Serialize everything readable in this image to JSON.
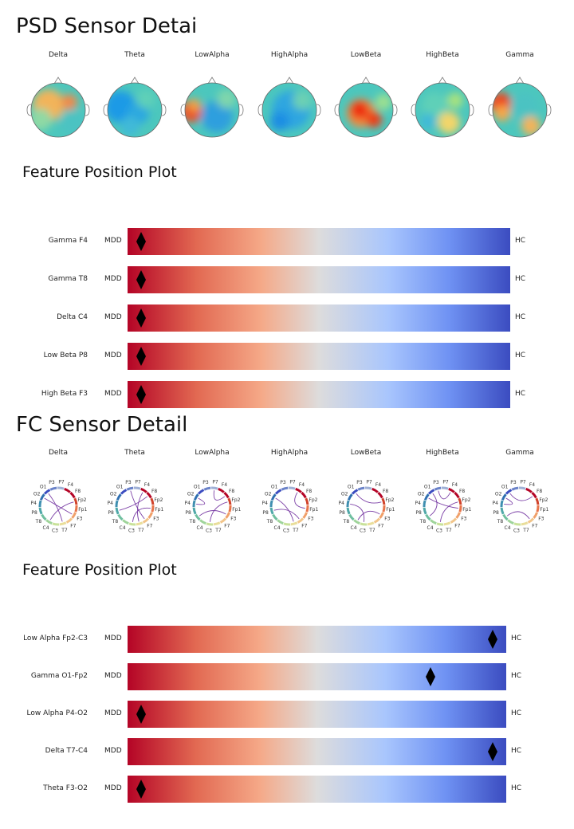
{
  "psd_section": {
    "title": "PSD Sensor Detai",
    "bands": [
      "Delta",
      "Theta",
      "LowAlpha",
      "HighAlpha",
      "LowBeta",
      "HighBeta",
      "Gamma"
    ]
  },
  "psd_position_plot": {
    "title": "Feature Position Plot",
    "left_label": "MDD",
    "right_label": "HC",
    "features": [
      {
        "label": "Gamma F4",
        "value": 0.035
      },
      {
        "label": "Gamma T8",
        "value": 0.035
      },
      {
        "label": "Delta C4",
        "value": 0.035
      },
      {
        "label": "Low Beta P8",
        "value": 0.035
      },
      {
        "label": "High Beta F3",
        "value": 0.035
      }
    ]
  },
  "fc_section": {
    "title": "FC Sensor Detail",
    "bands": [
      "Delta",
      "Theta",
      "LowAlpha",
      "HighAlpha",
      "LowBeta",
      "HighBeta",
      "Gamma"
    ],
    "channels": [
      "F4",
      "F8",
      "Fp2",
      "Fp1",
      "F3",
      "F7",
      "T7",
      "C3",
      "C4",
      "T8",
      "P8",
      "P4",
      "O2",
      "O1",
      "P3",
      "P7"
    ]
  },
  "fc_position_plot": {
    "title": "Feature Position Plot",
    "left_label": "MDD",
    "right_label": "HC",
    "features": [
      {
        "label": "Low Alpha Fp2-C3",
        "value": 0.965
      },
      {
        "label": "Gamma O1-Fp2",
        "value": 0.8
      },
      {
        "label": "Low Alpha P4-O2",
        "value": 0.035
      },
      {
        "label": "Delta T7-C4",
        "value": 0.965
      },
      {
        "label": "Theta F3-O2",
        "value": 0.035
      }
    ]
  },
  "colors": {
    "colormap_low": "#b40426",
    "colormap_mid": "#dddcdc",
    "colormap_high": "#3b4cc0",
    "topomap_low": "#1e90ff",
    "topomap_high": "#ee2a10",
    "marker": "#000000"
  }
}
